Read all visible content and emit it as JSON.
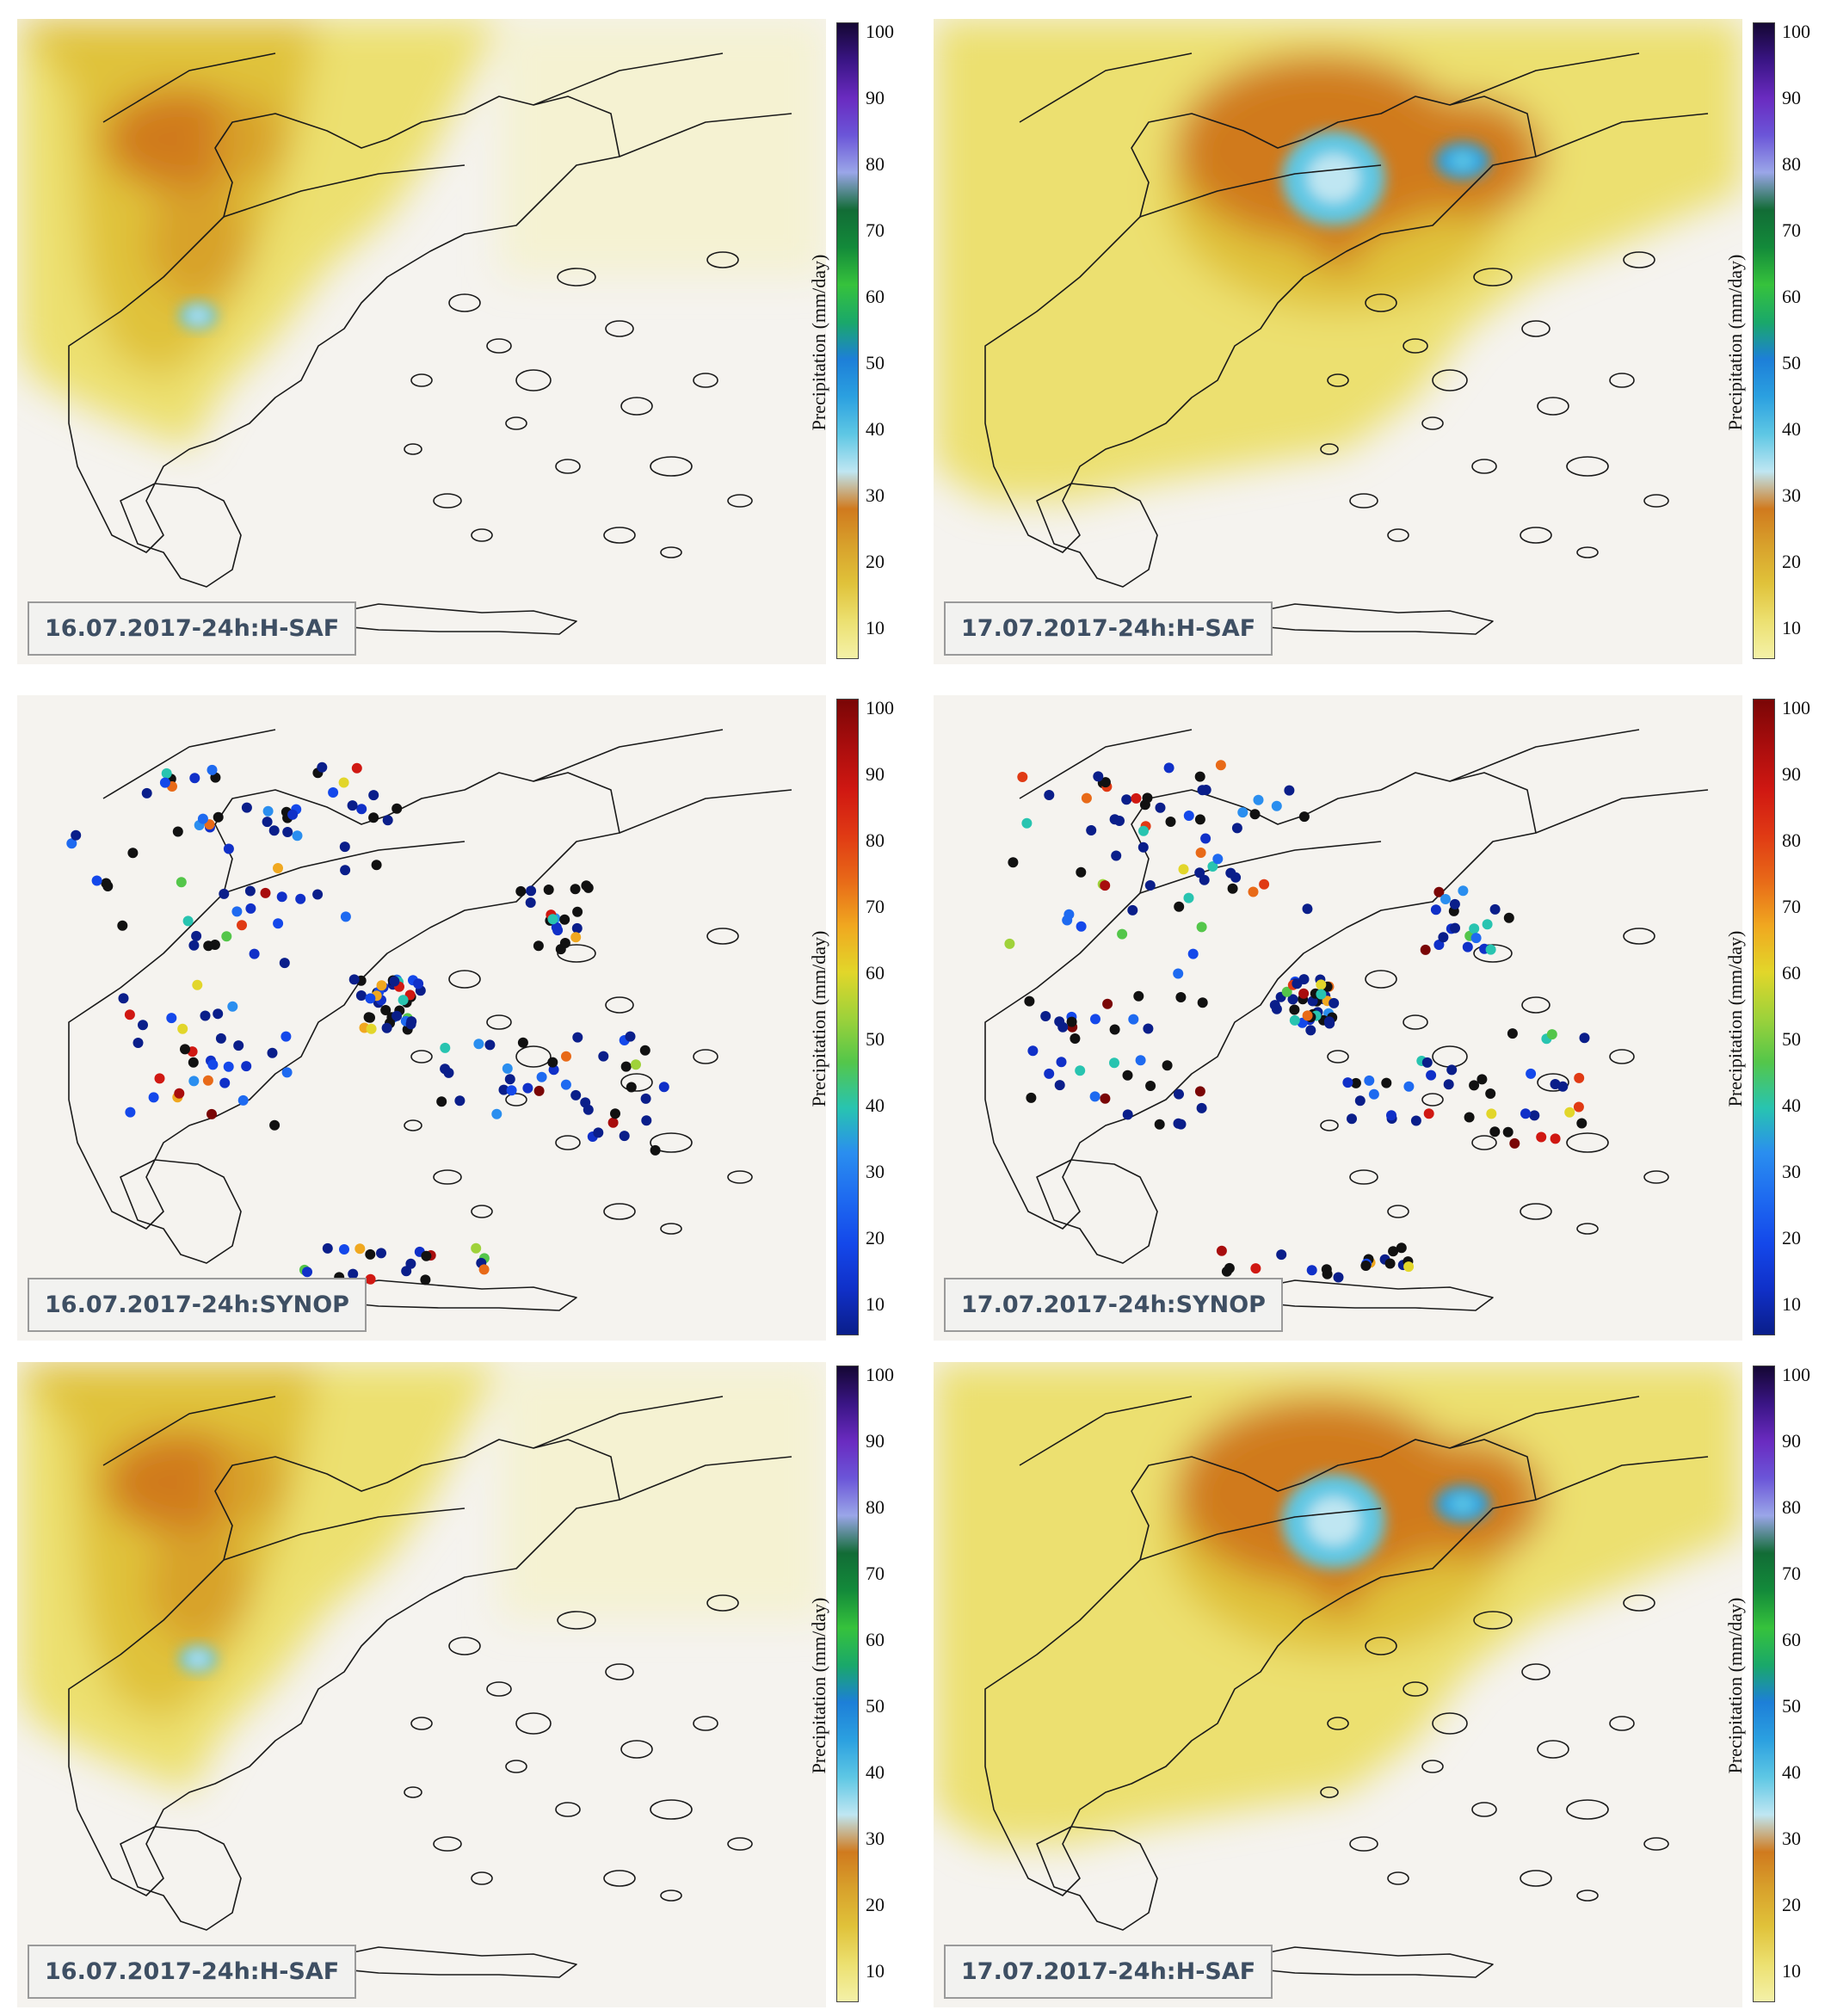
{
  "legend": {
    "label": "Precipitation (mm/day)",
    "ticks": [
      "100",
      "90",
      "80",
      "70",
      "60",
      "50",
      "40",
      "30",
      "20",
      "10"
    ]
  },
  "panels": [
    {
      "caption": "16.07.2017-24h:H-SAF",
      "kind": "hsaf",
      "day": "16"
    },
    {
      "caption": "17.07.2017-24h:H-SAF",
      "kind": "hsaf",
      "day": "17"
    },
    {
      "caption": "16.07.2017-24h:SYNOP",
      "kind": "synop",
      "day": "16"
    },
    {
      "caption": "17.07.2017-24h:SYNOP",
      "kind": "synop",
      "day": "17"
    },
    {
      "caption": "16.07.2017-24h:H-SAF",
      "kind": "hsaf",
      "day": "16"
    },
    {
      "caption": "17.07.2017-24h:H-SAF",
      "kind": "hsaf",
      "day": "17"
    }
  ],
  "colorscales": {
    "hsaf": [
      "#f4f1a8",
      "#ece070",
      "#e0c23a",
      "#d8a22c",
      "#d07a1e",
      "#bfe6f2",
      "#5ec7e4",
      "#2ba0e0",
      "#1d7fd8",
      "#1aa86a",
      "#36c23c",
      "#138a3a",
      "#126c36",
      "#9aa6e8",
      "#6b55d8",
      "#6a2bc0",
      "#3a1585",
      "#140733"
    ],
    "synop": [
      "#0a1e8a",
      "#1030c8",
      "#1448ea",
      "#1e6af0",
      "#2a8eef",
      "#28c4b0",
      "#54c64a",
      "#9fd23a",
      "#e2d62a",
      "#f0a820",
      "#e86a18",
      "#e03a14",
      "#d01812",
      "#a80d0d",
      "#7a0606"
    ]
  }
}
